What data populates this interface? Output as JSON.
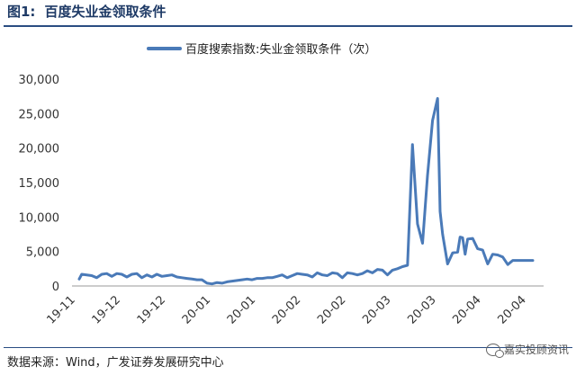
{
  "figure": {
    "label": "图1:",
    "title": "百度失业金领取条件"
  },
  "source_note": "数据来源：Wind，广发证券发展研究中心",
  "watermark": "嘉实投顾资讯",
  "chart_data": {
    "type": "line",
    "title": "",
    "xlabel": "",
    "ylabel": "",
    "ylim": [
      0,
      30000
    ],
    "y_ticks": [
      0,
      5000,
      10000,
      15000,
      20000,
      25000,
      30000
    ],
    "y_tick_labels": [
      "0",
      "5,000",
      "10,000",
      "15,000",
      "20,000",
      "25,000",
      "30,000"
    ],
    "x_tick_labels": [
      "19-11",
      "19-12",
      "19-12",
      "20-01",
      "20-01",
      "20-02",
      "20-02",
      "20-03",
      "20-03",
      "20-04",
      "20-04"
    ],
    "grid": false,
    "legend": "top-center",
    "color": "#4a7ab8",
    "series": [
      {
        "name": "百度搜索指数:失业金领取条件（次）",
        "x_index": [
          0,
          1,
          3,
          5,
          7,
          9,
          11,
          13,
          15,
          17,
          19,
          21,
          23,
          25,
          27,
          29,
          31,
          33,
          35,
          37,
          39,
          41,
          43,
          45,
          47,
          49,
          51,
          53,
          55,
          57,
          59,
          61,
          63,
          65,
          67,
          69,
          71,
          73,
          75,
          77,
          79,
          81,
          83,
          85,
          87,
          89,
          91,
          93,
          95,
          97,
          99,
          101,
          103,
          105,
          107,
          109,
          111,
          113,
          115,
          117,
          119,
          121,
          123,
          125,
          127,
          129,
          131,
          133,
          135,
          137,
          139,
          141,
          143,
          144,
          145,
          147,
          149,
          151,
          152,
          153,
          154,
          155,
          157,
          159,
          161,
          163,
          165,
          167,
          169,
          171,
          173,
          175,
          177,
          179,
          181
        ],
        "values": [
          1000,
          1700,
          1600,
          1500,
          1200,
          1700,
          1800,
          1400,
          1800,
          1700,
          1300,
          1700,
          1800,
          1200,
          1600,
          1300,
          1700,
          1400,
          1500,
          1600,
          1300,
          1200,
          1100,
          1000,
          900,
          900,
          400,
          300,
          500,
          400,
          600,
          700,
          800,
          900,
          1000,
          900,
          1100,
          1100,
          1200,
          1200,
          1400,
          1600,
          1200,
          1500,
          1800,
          1700,
          1600,
          1300,
          1900,
          1600,
          1500,
          1900,
          1800,
          1200,
          1900,
          1800,
          1600,
          1800,
          2200,
          1900,
          2400,
          2300,
          1600,
          2300,
          2500,
          2800,
          3000,
          20500,
          9000,
          6200,
          16000,
          24000,
          27200,
          10800,
          7500,
          3200,
          4800,
          4900,
          7100,
          7000,
          4600,
          6800,
          6900,
          5400,
          5200,
          3200,
          4600,
          4500,
          4200,
          3100,
          3700,
          3700,
          3700,
          3700,
          3700
        ]
      }
    ]
  }
}
